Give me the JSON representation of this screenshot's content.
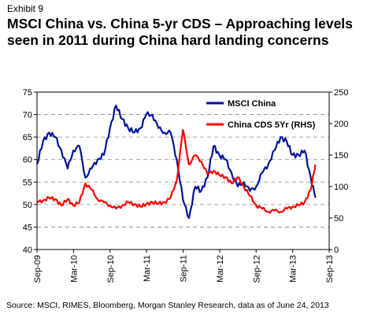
{
  "header": {
    "exhibit": "Exhibit 9",
    "title": "MSCI China vs. China 5-yr CDS – Approaching levels seen in 2011 during China hard landing concerns"
  },
  "source": "Source: MSCI, RIMES, Bloomberg, Morgan Stanley Research, data as of June 24, 2013",
  "chart_data": {
    "type": "line",
    "grid": "dashed horizontal",
    "legend_placement": "top-right",
    "x_tick_labels": [
      "Sep-09",
      "Mar-10",
      "Sep-10",
      "Mar-11",
      "Sep-11",
      "Mar-12",
      "Sep-12",
      "Mar-13",
      "Sep-13"
    ],
    "ylim_left": [
      40,
      75
    ],
    "yticks_left": [
      40,
      45,
      50,
      55,
      60,
      65,
      70,
      75
    ],
    "ylim_right": [
      0,
      250
    ],
    "yticks_right": [
      0,
      50,
      100,
      150,
      200,
      250
    ],
    "series": [
      {
        "name": "MSCI China",
        "axis": "left",
        "color": "#00139b",
        "x": [
          "2009-09-01",
          "2009-10-01",
          "2009-11-01",
          "2009-12-01",
          "2010-01-01",
          "2010-02-01",
          "2010-03-01",
          "2010-04-01",
          "2010-05-01",
          "2010-06-01",
          "2010-07-01",
          "2010-08-01",
          "2010-09-01",
          "2010-10-01",
          "2010-11-01",
          "2010-12-01",
          "2011-01-01",
          "2011-02-01",
          "2011-03-01",
          "2011-04-01",
          "2011-05-01",
          "2011-06-01",
          "2011-07-01",
          "2011-08-01",
          "2011-09-01",
          "2011-10-01",
          "2011-11-01",
          "2011-12-01",
          "2012-01-01",
          "2012-02-01",
          "2012-03-01",
          "2012-04-01",
          "2012-05-01",
          "2012-06-01",
          "2012-07-01",
          "2012-08-01",
          "2012-09-01",
          "2012-10-01",
          "2012-11-01",
          "2012-12-01",
          "2013-01-01",
          "2013-02-01",
          "2013-03-01",
          "2013-04-01",
          "2013-05-01",
          "2013-06-01",
          "2013-06-24"
        ],
        "values": [
          59,
          64,
          66,
          65,
          62,
          58,
          62,
          63,
          56,
          58,
          60,
          61,
          67,
          72,
          69,
          67,
          66,
          67,
          70,
          70,
          67,
          66,
          66,
          60,
          51,
          47,
          54,
          53,
          56,
          63,
          61,
          60,
          57,
          54,
          55,
          53,
          54,
          57,
          59,
          62,
          65,
          64,
          61,
          61,
          62,
          56,
          51.5
        ]
      },
      {
        "name": "China CDS 5Yr (RHS)",
        "axis": "right",
        "color": "#ff0000",
        "x": [
          "2009-09-01",
          "2009-10-01",
          "2009-11-01",
          "2009-12-01",
          "2010-01-01",
          "2010-02-01",
          "2010-03-01",
          "2010-04-01",
          "2010-05-01",
          "2010-06-01",
          "2010-07-01",
          "2010-08-01",
          "2010-09-01",
          "2010-10-01",
          "2010-11-01",
          "2010-12-01",
          "2011-01-01",
          "2011-02-01",
          "2011-03-01",
          "2011-04-01",
          "2011-05-01",
          "2011-06-01",
          "2011-07-01",
          "2011-08-01",
          "2011-09-01",
          "2011-10-01",
          "2011-11-01",
          "2011-12-01",
          "2012-01-01",
          "2012-02-01",
          "2012-03-01",
          "2012-04-01",
          "2012-05-01",
          "2012-06-01",
          "2012-07-01",
          "2012-08-01",
          "2012-09-01",
          "2012-10-01",
          "2012-11-01",
          "2012-12-01",
          "2013-01-01",
          "2013-02-01",
          "2013-03-01",
          "2013-04-01",
          "2013-05-01",
          "2013-06-01",
          "2013-06-24"
        ],
        "values": [
          75,
          78,
          82,
          80,
          70,
          80,
          70,
          75,
          105,
          95,
          80,
          75,
          70,
          65,
          70,
          75,
          72,
          68,
          72,
          75,
          73,
          75,
          82,
          110,
          190,
          135,
          150,
          140,
          120,
          125,
          118,
          115,
          105,
          115,
          100,
          85,
          70,
          65,
          60,
          62,
          60,
          65,
          68,
          70,
          75,
          95,
          135
        ]
      }
    ]
  }
}
